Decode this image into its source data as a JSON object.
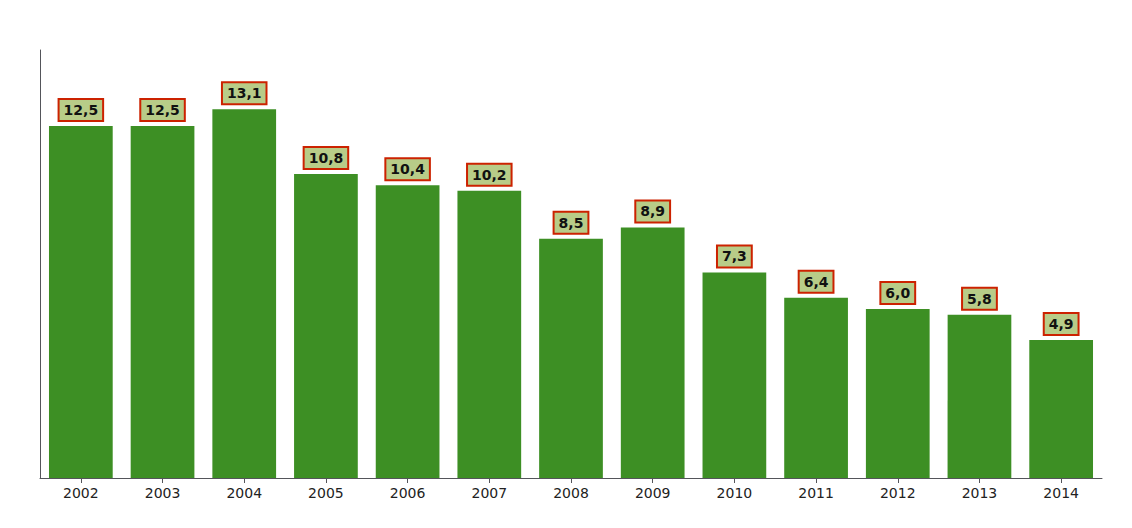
{
  "chart_data": {
    "type": "bar",
    "categories": [
      "2002",
      "2003",
      "2004",
      "2005",
      "2006",
      "2007",
      "2008",
      "2009",
      "2010",
      "2011",
      "2012",
      "2013",
      "2014"
    ],
    "values": [
      12.5,
      12.5,
      13.1,
      10.8,
      10.4,
      10.2,
      8.5,
      8.9,
      7.3,
      6.4,
      6.0,
      5.8,
      4.9
    ],
    "value_labels": [
      "12,5",
      "12,5",
      "13,1",
      "10,8",
      "10,4",
      "10,2",
      "8,5",
      "8,9",
      "7,3",
      "6,4",
      "6,0",
      "5,8",
      "4,9"
    ],
    "data_labels": true,
    "color": "#3d8f24",
    "ylim": [
      0,
      15.2
    ],
    "tick_labels": "x",
    "grid": false
  }
}
